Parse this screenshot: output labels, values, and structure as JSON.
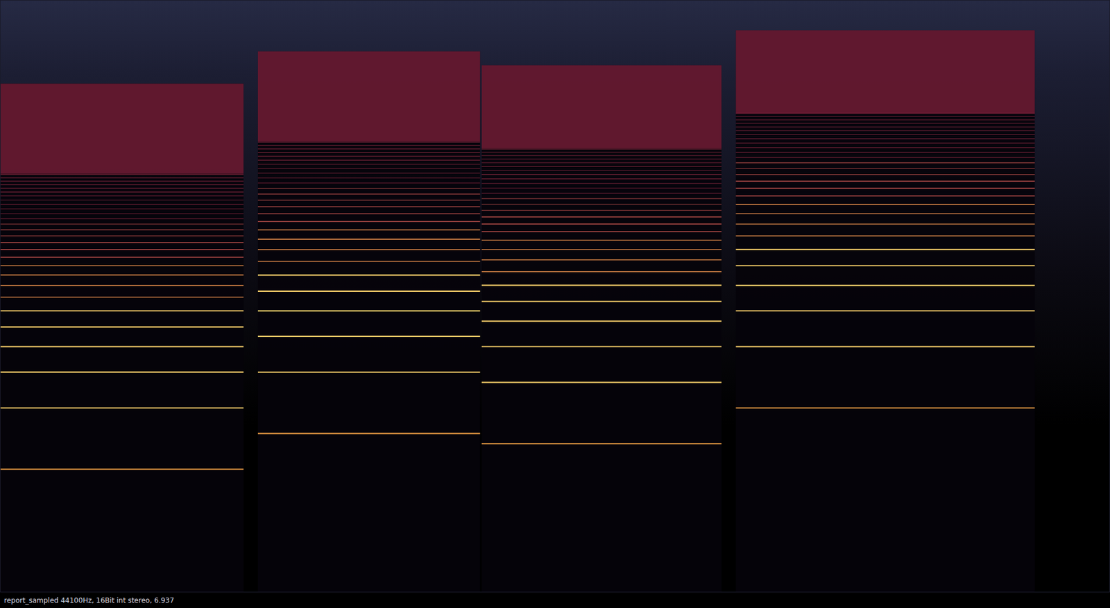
{
  "chart_data": {
    "type": "spectrogram",
    "caption": "report_sampled 44100Hz, 16Bit int stereo, 6.937",
    "xlim": [
      0,
      6.937
    ],
    "ylim": [
      27.5,
      22050
    ],
    "log": "y",
    "grid": false,
    "tick_labels": false,
    "segments": [
      {
        "start": 0,
        "end": 1.52,
        "cutoff": 8620,
        "band": [
          3100,
          8620
        ],
        "harmonics": [
          110,
          220,
          330,
          440,
          550,
          660,
          770,
          880,
          990,
          1100,
          1210,
          1320,
          1430,
          1540,
          1650,
          1760,
          1870,
          1980,
          2090,
          2200,
          2310,
          2420,
          2530,
          2640,
          2750,
          2860,
          2970,
          3080
        ]
      },
      {
        "start": 1.61,
        "end": 3.0,
        "cutoff": 12420,
        "band": [
          4480,
          12420
        ],
        "harmonics": [
          164.8,
          329.6,
          494.4,
          659.2,
          824,
          988.8,
          1153.6,
          1318.4,
          1483.2,
          1648,
          1812.8,
          1977.6,
          2142.4,
          2307.2,
          2472,
          2636.8,
          2801.6,
          2966.4,
          3131.2,
          3296,
          3460.8,
          3625.6,
          3790.4,
          3955.2,
          4120,
          4284.8,
          4449.6
        ]
      },
      {
        "start": 3.01,
        "end": 4.51,
        "cutoff": 10600,
        "band": [
          4140,
          10600
        ],
        "harmonics": [
          146.8,
          293.6,
          440.4,
          587.2,
          734,
          880.8,
          1027.6,
          1174.4,
          1321.2,
          1468,
          1614.8,
          1761.6,
          1908.4,
          2055.2,
          2202,
          2348.8,
          2495.6,
          2642.4,
          2789.2,
          2936,
          3082.8,
          3229.6,
          3376.4,
          3523.2,
          3670,
          3816.8,
          3963.6,
          4110.4
        ]
      },
      {
        "start": 4.6,
        "end": 6.47,
        "cutoff": 15770,
        "band": [
          6160,
          15770
        ],
        "harmonics": [
          220,
          440,
          660,
          880,
          1100,
          1320,
          1540,
          1760,
          1980,
          2200,
          2420,
          2640,
          2860,
          3080,
          3300,
          3520,
          3740,
          3960,
          4180,
          4400,
          4620,
          4840,
          5060,
          5280,
          5500,
          5720,
          5940,
          6160
        ]
      }
    ]
  }
}
